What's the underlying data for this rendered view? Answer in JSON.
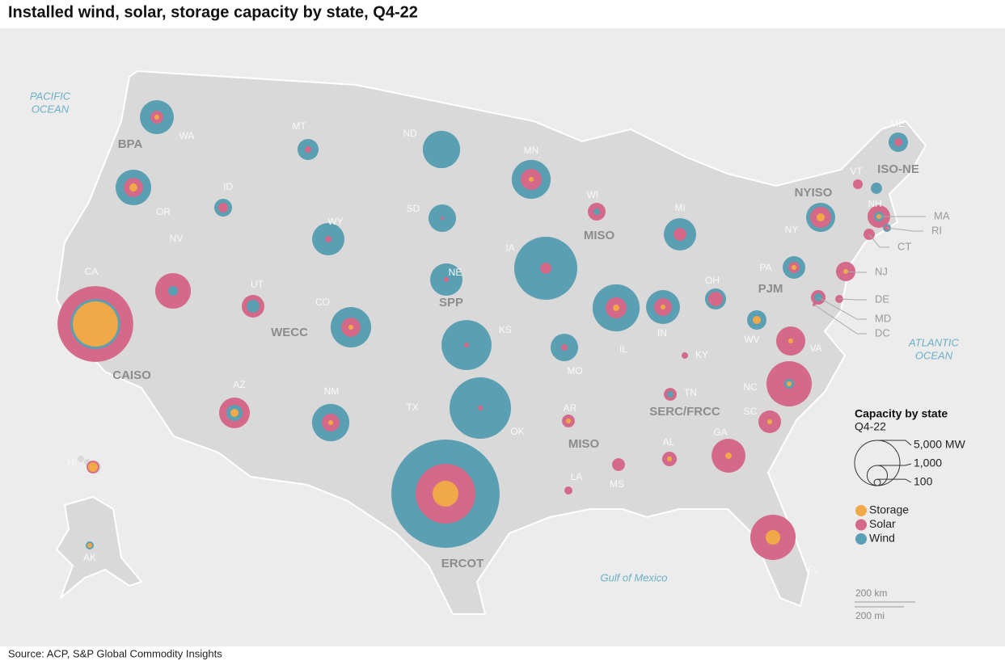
{
  "title": "Installed wind, solar, storage capacity by state, Q4-22",
  "source": "Source: ACP, S&P Global Commodity Insights",
  "regions": [
    "BPA",
    "CAISO",
    "WECC",
    "SPP",
    "MISO",
    "MISO",
    "ERCOT",
    "NYISO",
    "ISO-NE",
    "PJM",
    "SERC/FRCC"
  ],
  "oceans": [
    {
      "lines": [
        "PACIFIC",
        "OCEAN"
      ]
    },
    {
      "lines": [
        "ATLANTIC",
        "OCEAN"
      ]
    },
    {
      "lines": [
        "Gulf of Mexico"
      ]
    }
  ],
  "legend": {
    "title": "Capacity by state",
    "subtitle": "Q4-22",
    "sizes": [
      {
        "value": 5000,
        "label": "5,000 MW"
      },
      {
        "value": 1000,
        "label": "1,000"
      },
      100
    ]
  },
  "scale_bar": [
    "200 km",
    "200 mi"
  ],
  "chart_data": {
    "type": "bubble-map",
    "categories": [
      "WA",
      "OR",
      "CA",
      "NV",
      "ID",
      "MT",
      "WY",
      "UT",
      "CO",
      "AZ",
      "NM",
      "ND",
      "SD",
      "NE",
      "KS",
      "OK",
      "TX",
      "MN",
      "IA",
      "MO",
      "AR",
      "LA",
      "WI",
      "IL",
      "MI",
      "IN",
      "OH",
      "KY",
      "TN",
      "MS",
      "AL",
      "GA",
      "SC",
      "NC",
      "VA",
      "WV",
      "PA",
      "NY",
      "FL",
      "NJ",
      "DE",
      "MD",
      "DC",
      "MA",
      "RI",
      "CT",
      "VT",
      "NH",
      "ME",
      "HI",
      "AK"
    ],
    "series": [
      {
        "name": "Storage",
        "color": "#f0a848",
        "values": [
          60,
          160,
          5000,
          null,
          null,
          null,
          null,
          null,
          60,
          160,
          60,
          null,
          null,
          null,
          null,
          null,
          1630,
          60,
          null,
          null,
          60,
          null,
          null,
          100,
          null,
          60,
          null,
          null,
          null,
          null,
          60,
          100,
          60,
          60,
          60,
          160,
          60,
          160,
          520,
          60,
          null,
          null,
          null,
          60,
          null,
          null,
          null,
          null,
          null,
          230,
          60
        ]
      },
      {
        "name": "Solar",
        "color": "#d4698a",
        "values": [
          400,
          900,
          14000,
          3100,
          230,
          100,
          100,
          1250,
          900,
          2300,
          770,
          null,
          25,
          60,
          60,
          60,
          8700,
          1080,
          310,
          100,
          400,
          160,
          770,
          1080,
          400,
          770,
          520,
          100,
          400,
          400,
          520,
          2800,
          1250,
          5000,
          2070,
          null,
          310,
          1080,
          5000,
          920,
          160,
          520,
          25,
          1250,
          60,
          310,
          230,
          null,
          160,
          400,
          null
        ]
      },
      {
        "name": "Wind",
        "color": "#5b9fb3",
        "values": [
          2800,
          3100,
          6100,
          230,
          770,
          1080,
          2550,
          400,
          4000,
          640,
          3400,
          3400,
          1850,
          2550,
          6100,
          9200,
          28600,
          3700,
          9700,
          1850,
          null,
          null,
          100,
          5400,
          2550,
          2800,
          1080,
          null,
          100,
          null,
          null,
          null,
          null,
          230,
          null,
          920,
          1250,
          2070,
          null,
          null,
          null,
          160,
          null,
          230,
          160,
          null,
          null,
          310,
          920,
          null,
          160
        ]
      }
    ]
  }
}
